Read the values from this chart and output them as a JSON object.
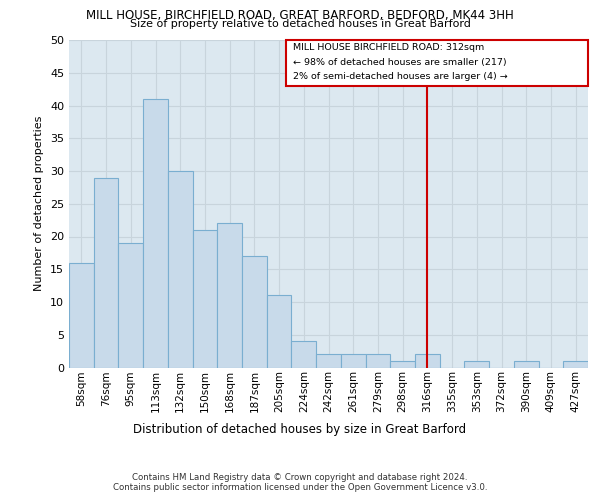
{
  "title_line1": "MILL HOUSE, BIRCHFIELD ROAD, GREAT BARFORD, BEDFORD, MK44 3HH",
  "title_line2": "Size of property relative to detached houses in Great Barford",
  "xlabel": "Distribution of detached houses by size in Great Barford",
  "ylabel": "Number of detached properties",
  "categories": [
    "58sqm",
    "76sqm",
    "95sqm",
    "113sqm",
    "132sqm",
    "150sqm",
    "168sqm",
    "187sqm",
    "205sqm",
    "224sqm",
    "242sqm",
    "261sqm",
    "279sqm",
    "298sqm",
    "316sqm",
    "335sqm",
    "353sqm",
    "372sqm",
    "390sqm",
    "409sqm",
    "427sqm"
  ],
  "values": [
    16,
    29,
    19,
    41,
    30,
    21,
    22,
    17,
    11,
    4,
    2,
    2,
    2,
    1,
    2,
    0,
    1,
    0,
    1,
    0,
    1
  ],
  "bar_color": "#c8daea",
  "bar_edge_color": "#7aaed0",
  "vline_x_idx": 14,
  "vline_color": "#cc0000",
  "annotation_title": "MILL HOUSE BIRCHFIELD ROAD: 312sqm",
  "annotation_line2": "← 98% of detached houses are smaller (217)",
  "annotation_line3": "2% of semi-detached houses are larger (4) →",
  "annotation_box_color": "#cc0000",
  "ylim": [
    0,
    50
  ],
  "yticks": [
    0,
    5,
    10,
    15,
    20,
    25,
    30,
    35,
    40,
    45,
    50
  ],
  "grid_color": "#c8d4dc",
  "background_color": "#dce8f0",
  "fig_background": "#ffffff",
  "footnote1": "Contains HM Land Registry data © Crown copyright and database right 2024.",
  "footnote2": "Contains public sector information licensed under the Open Government Licence v3.0."
}
